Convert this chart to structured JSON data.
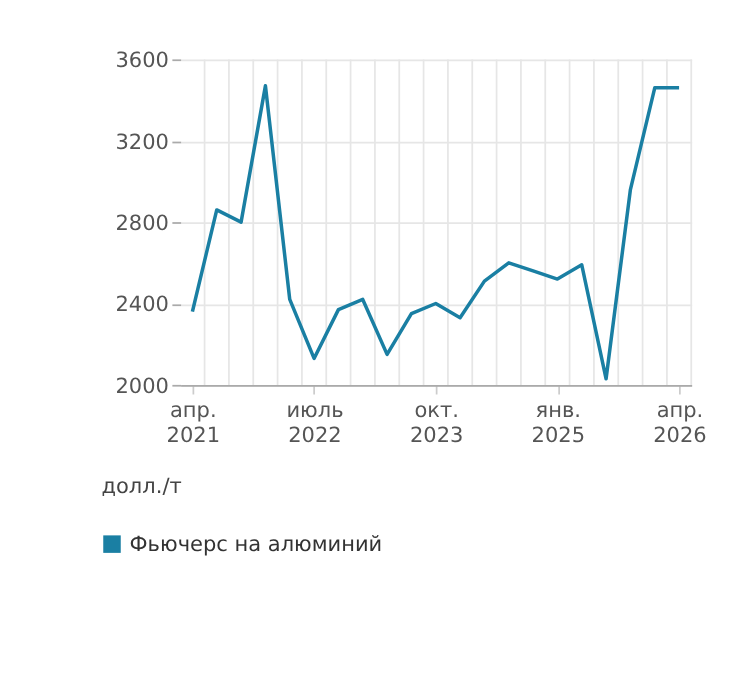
{
  "chart_data": {
    "type": "line",
    "ylabel": "долл./т",
    "categories": [
      "апр. 2021",
      null,
      null,
      null,
      null,
      "июль 2022",
      null,
      null,
      null,
      null,
      "окт. 2023",
      null,
      null,
      null,
      null,
      "янв. 2025",
      null,
      null,
      null,
      null,
      "апр. 2026"
    ],
    "series": [
      {
        "name": "Фьючерс на алюминий",
        "color": "#1a7fa3",
        "values": [
          2360,
          2860,
          2800,
          3470,
          2420,
          2130,
          2370,
          2420,
          2150,
          2350,
          2400,
          2330,
          2510,
          2600,
          2560,
          2520,
          2590,
          2030,
          2960,
          3460,
          3460
        ]
      }
    ],
    "ylim": [
      2000,
      3600
    ],
    "yticks": [
      2000,
      2400,
      2800,
      3200,
      3600
    ],
    "grid": true,
    "legend": "bottom left",
    "marker": "none",
    "line_style": "solid"
  }
}
